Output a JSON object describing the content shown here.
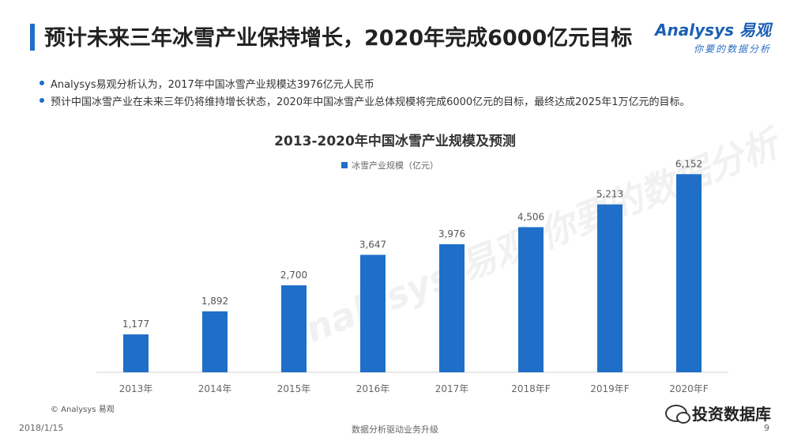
{
  "slide": {
    "title": "预计未来三年冰雪产业保持增长，2020年完成6000亿元目标",
    "bullets": [
      "Analysys易观分析认为，2017年中国冰雪产业规模达3976亿元人民币",
      "预计中国冰雪产业在未来三年仍将维持增长状态，2020年中国冰雪产业总体规模将完成6000亿元的目标，最终达成2025年1万亿元的目标。"
    ],
    "source": "© Analysys 易观",
    "date": "2018/1/15",
    "footer_center": "数据分析驱动业务升级",
    "page_number": "9",
    "wechat_account": "投资数据库"
  },
  "logo": {
    "name": "Analysys 易观",
    "tagline": "你要的数据分析"
  },
  "watermark": "Analysys 易观 你要的数据分析",
  "colors": {
    "bar": "#1f6fc8",
    "accent": "#1f6fc8"
  },
  "chart_data": {
    "type": "bar",
    "title": "2013-2020年中国冰雪产业规模及预测",
    "categories": [
      "2013年",
      "2014年",
      "2015年",
      "2016年",
      "2017年",
      "2018年F",
      "2019年F",
      "2020年F"
    ],
    "series": [
      {
        "name": "冰雪产业规模（亿元）",
        "values": [
          1177,
          1892,
          2700,
          3647,
          3976,
          4506,
          5213,
          6152
        ],
        "labels": [
          "1,177",
          "1,892",
          "2,700",
          "3,647",
          "3,976",
          "4,506",
          "5,213",
          "6,152"
        ]
      }
    ],
    "ylim": [
      0,
      6700
    ],
    "legend": "top",
    "grid": false
  }
}
